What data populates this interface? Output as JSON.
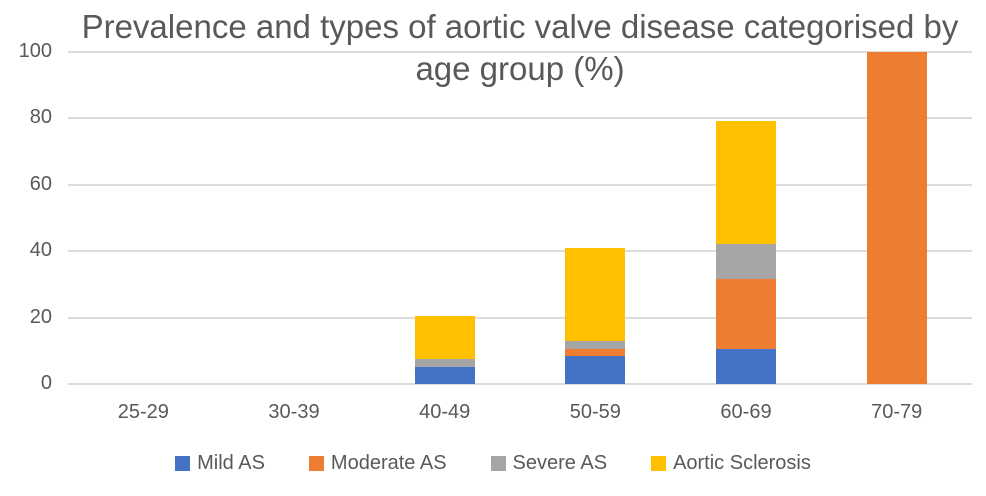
{
  "chart_data": {
    "type": "bar",
    "stacked": true,
    "title": "Prevalence and types of aortic valve disease categorised by age group (%)",
    "categories": [
      "25-29",
      "30-39",
      "40-49",
      "50-59",
      "60-69",
      "70-79"
    ],
    "series": [
      {
        "name": "Mild AS",
        "color": "#4472C4",
        "values": [
          0,
          0,
          5,
          8.5,
          10.5,
          0
        ]
      },
      {
        "name": "Moderate AS",
        "color": "#ED7D31",
        "values": [
          0,
          0,
          0,
          2,
          21,
          100
        ]
      },
      {
        "name": "Severe AS",
        "color": "#A5A5A5",
        "values": [
          0,
          0,
          2.5,
          2.5,
          10.5,
          0
        ]
      },
      {
        "name": "Aortic Sclerosis",
        "color": "#FFC000",
        "values": [
          0,
          0,
          13,
          28,
          37,
          0
        ]
      }
    ],
    "stack_totals": [
      0,
      0,
      20.5,
      41,
      79,
      100
    ],
    "y_ticks": [
      0,
      20,
      40,
      60,
      80,
      100
    ],
    "ylim": [
      0,
      100
    ],
    "xlabel": "",
    "ylabel": "",
    "grid": true,
    "legend_position": "bottom"
  },
  "colors": {
    "gridline": "#dcdcdc",
    "text": "#595959",
    "background": "#ffffff"
  }
}
